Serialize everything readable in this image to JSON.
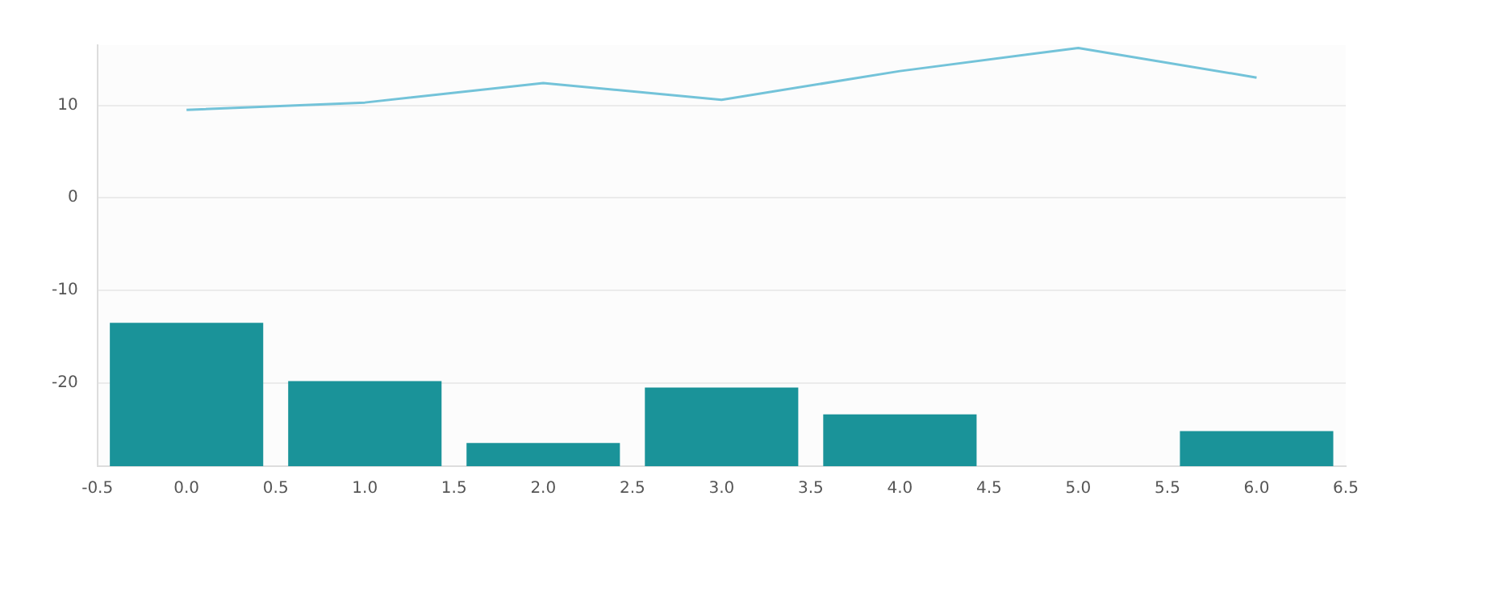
{
  "chart_data": {
    "type": "bar",
    "x": [
      0,
      1,
      2,
      3,
      4,
      5,
      6
    ],
    "xlim": [
      -0.5,
      6.5
    ],
    "xticks": [
      {
        "value": -0.5,
        "label": "-0.5"
      },
      {
        "value": 0,
        "label": "0.0"
      },
      {
        "value": 0.5,
        "label": "0.5"
      },
      {
        "value": 1,
        "label": "1.0"
      },
      {
        "value": 1.5,
        "label": "1.5"
      },
      {
        "value": 2,
        "label": "2.0"
      },
      {
        "value": 2.5,
        "label": "2.5"
      },
      {
        "value": 3,
        "label": "3.0"
      },
      {
        "value": 3.5,
        "label": "3.5"
      },
      {
        "value": 4,
        "label": "4.0"
      },
      {
        "value": 4.5,
        "label": "4.5"
      },
      {
        "value": 5,
        "label": "5.0"
      },
      {
        "value": 5.5,
        "label": "5.5"
      },
      {
        "value": 6,
        "label": "6.0"
      },
      {
        "value": 6.5,
        "label": "6.5"
      }
    ],
    "ylim": [
      -29,
      16.5
    ],
    "yticks": [
      -20,
      -10,
      0,
      10
    ],
    "grid": "y",
    "legend": false,
    "series": [
      {
        "color": "#1a9399",
        "values": [
          15.5,
          9.2,
          2.5,
          8.5,
          5.6,
          null,
          3.8
        ],
        "base": [
          -29,
          -29,
          -29,
          -29,
          -29,
          null,
          -29
        ]
      },
      {
        "type": "line",
        "color": "#73c3d9",
        "marker": "none",
        "line_style": "solid",
        "values": [
          9.5,
          10.3,
          12.4,
          10.6,
          13.7,
          16.2,
          13.0
        ]
      }
    ]
  }
}
